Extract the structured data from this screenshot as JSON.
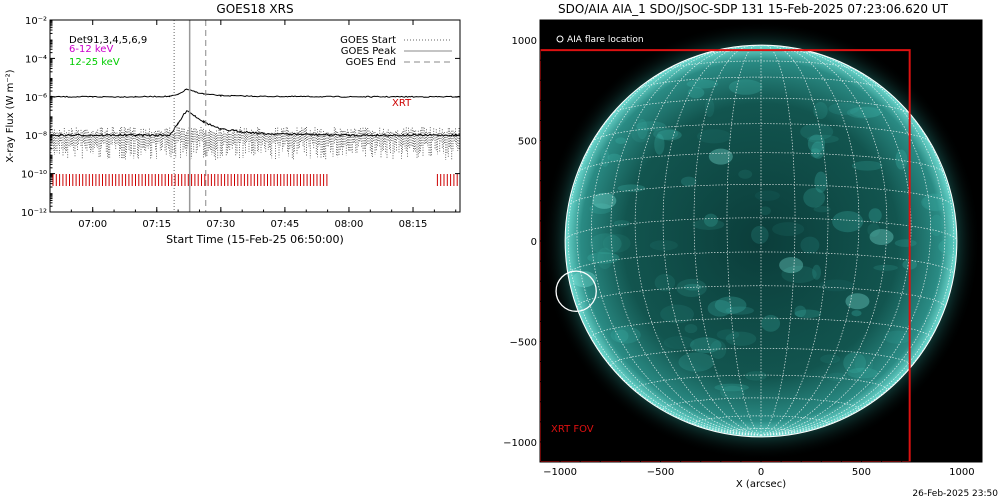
{
  "goes": {
    "title": "GOES18 XRS",
    "ylabel": "X-ray Flux (W m⁻²)",
    "xlabel": "Start Time (15-Feb-25 06:50:00)",
    "channels_label": "Det91,3,4,5,6,9",
    "band_6_12": "6-12 keV",
    "band_12_25": "12-25 keV",
    "legend_start": "GOES Start",
    "legend_peak": "GOES Peak",
    "legend_end": "GOES End",
    "xrt_label": "XRT",
    "colors": {
      "band_6_12": "#cc00cc",
      "band_12_25": "#00cc00",
      "xrt": "#cc0000"
    }
  },
  "aia": {
    "title": "SDO/AIA AIA_1 SDO/JSOC-SDP 131 15-Feb-2025 07:23:06.620 UT",
    "flare_label": "AIA flare location",
    "fov_label": "XRT FOV",
    "xlabel": "X (arcsec)",
    "timestamp": "26-Feb-2025 23:50",
    "colors": {
      "disk": "#2aa8a0",
      "fov": "#dd1111"
    }
  },
  "chart_data": [
    {
      "type": "line",
      "title": "GOES18 XRS",
      "xlabel": "Start Time (15-Feb-25 06:50:00)",
      "ylabel": "X-ray Flux (W m⁻²)",
      "yscale": "log",
      "ylim": [
        1e-12,
        0.01
      ],
      "xlim": [
        "06:50",
        "08:26"
      ],
      "x_ticks": [
        "07:00",
        "07:15",
        "07:30",
        "07:45",
        "08:00",
        "08:15"
      ],
      "y_ticks": [
        "10⁻¹²",
        "10⁻¹⁰",
        "10⁻⁸",
        "10⁻⁶",
        "10⁻⁴",
        "10⁻²"
      ],
      "events": {
        "start": "07:20",
        "peak": "07:22",
        "end": "07:26"
      },
      "series": [
        {
          "name": "",
          "x": [
            "06:50",
            "07:00",
            "07:10",
            "07:18",
            "07:20",
            "07:22",
            "07:24",
            "07:26",
            "07:30",
            "07:40",
            "08:00",
            "08:26"
          ],
          "values": [
            1e-06,
            1e-06,
            1e-06,
            1.05e-06,
            1.3e-06,
            2.5e-06,
            1.8e-06,
            1.4e-06,
            1.15e-06,
            1.05e-06,
            1e-06,
            1e-06
          ]
        },
        {
          "name": "",
          "x": [
            "06:50",
            "07:00",
            "07:10",
            "07:18",
            "07:20",
            "07:22",
            "07:24",
            "07:26",
            "07:30",
            "07:40",
            "08:00",
            "08:26"
          ],
          "values": [
            1e-08,
            1e-08,
            1e-08,
            1e-08,
            4e-08,
            2e-07,
            1e-07,
            5e-08,
            2e-08,
            1.2e-08,
            1e-08,
            1e-08
          ]
        }
      ],
      "xrt_coverage": [
        [
          "06:50",
          "07:55"
        ],
        [
          "08:20",
          "08:26"
        ]
      ]
    },
    {
      "type": "scatter",
      "title": "SDO/AIA AIA_1 SDO/JSOC-SDP 131 15-Feb-2025 07:23:06.620 UT",
      "xlabel": "X (arcsec)",
      "ylabel": "",
      "xlim": [
        -1100,
        1100
      ],
      "ylim": [
        -1100,
        1100
      ],
      "x_ticks": [
        -1000,
        -500,
        0,
        500,
        1000
      ],
      "y_ticks": [
        -1000,
        -500,
        0,
        500,
        1000
      ],
      "solar_radius_arcsec": 975,
      "flare_location": {
        "x": -920,
        "y": -250
      },
      "xrt_fov": {
        "x0": -1100,
        "x1": 740,
        "y0": -1100,
        "y1": 950
      }
    }
  ]
}
